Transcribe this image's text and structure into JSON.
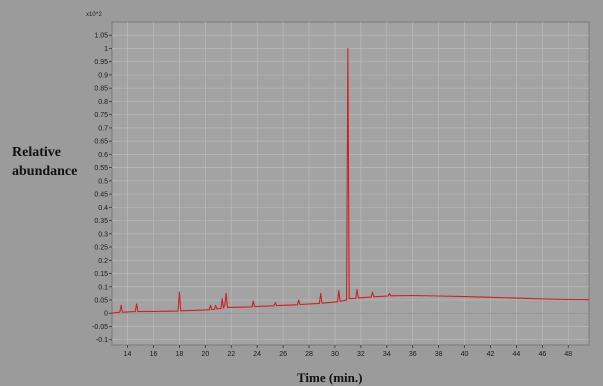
{
  "chart_data": {
    "type": "line",
    "title": "",
    "xlabel": "Time (min.)",
    "ylabel": [
      "Relative",
      "abundance"
    ],
    "y_scale_label": "x10^2",
    "xlim": [
      12.8,
      49.6
    ],
    "ylim": [
      -0.12,
      1.1
    ],
    "x_ticks": [
      14,
      16,
      18,
      20,
      22,
      24,
      26,
      28,
      30,
      32,
      34,
      36,
      38,
      40,
      42,
      44,
      46,
      48
    ],
    "y_ticks": [
      -0.1,
      -0.05,
      0,
      0.05,
      0.1,
      0.15,
      0.2,
      0.25,
      0.3,
      0.35,
      0.4,
      0.45,
      0.5,
      0.55,
      0.6,
      0.65,
      0.7,
      0.75,
      0.8,
      0.85,
      0.9,
      0.95,
      1,
      1.05
    ],
    "y_tick_labels": [
      "-0.1",
      "-0.05",
      "0",
      "0.05",
      "0.1",
      "0.15",
      "0.2",
      "0.25",
      "0.3",
      "0.35",
      "0.4",
      "0.45",
      "0.5",
      "0.55",
      "0.6",
      "0.65",
      "0.7",
      "0.75",
      "0.8",
      "0.85",
      "0.9",
      "0.95",
      "1",
      "1.05"
    ],
    "grid": true,
    "colors": {
      "plot_bg": "#a3a3a3",
      "page_bg": "#9b9b9b",
      "grid": "#b9b9b9",
      "line": "#cc2222",
      "text": "#1a1a1a"
    },
    "series": [
      {
        "x": [
          12.8,
          13.4,
          13.5,
          13.6,
          14.6,
          14.7,
          14.8,
          16.0,
          17.9,
          18.0,
          18.1,
          19.8,
          20.3,
          20.4,
          20.5,
          20.7,
          20.8,
          20.9,
          21.2,
          21.3,
          21.4,
          21.5,
          21.6,
          21.7,
          23.6,
          23.7,
          23.8,
          25.3,
          25.4,
          25.5,
          27.1,
          27.2,
          27.3,
          28.8,
          28.9,
          29.0,
          30.2,
          30.3,
          30.4,
          30.9,
          31.0,
          31.1,
          31.6,
          31.7,
          31.8,
          32.8,
          32.9,
          33.0,
          34.1,
          34.2,
          34.3,
          36.0,
          38.0,
          40.0,
          42.0,
          44.0,
          46.0,
          48.0,
          49.6
        ],
        "y": [
          0.0,
          0.004,
          0.03,
          0.004,
          0.006,
          0.035,
          0.006,
          0.007,
          0.008,
          0.08,
          0.009,
          0.012,
          0.013,
          0.03,
          0.014,
          0.015,
          0.03,
          0.016,
          0.018,
          0.055,
          0.02,
          0.03,
          0.075,
          0.022,
          0.024,
          0.045,
          0.025,
          0.028,
          0.04,
          0.029,
          0.032,
          0.05,
          0.033,
          0.037,
          0.075,
          0.038,
          0.043,
          0.085,
          0.045,
          0.05,
          1.0,
          0.055,
          0.056,
          0.09,
          0.058,
          0.061,
          0.08,
          0.062,
          0.065,
          0.075,
          0.066,
          0.067,
          0.065,
          0.063,
          0.06,
          0.057,
          0.054,
          0.052,
          0.051
        ]
      }
    ]
  }
}
